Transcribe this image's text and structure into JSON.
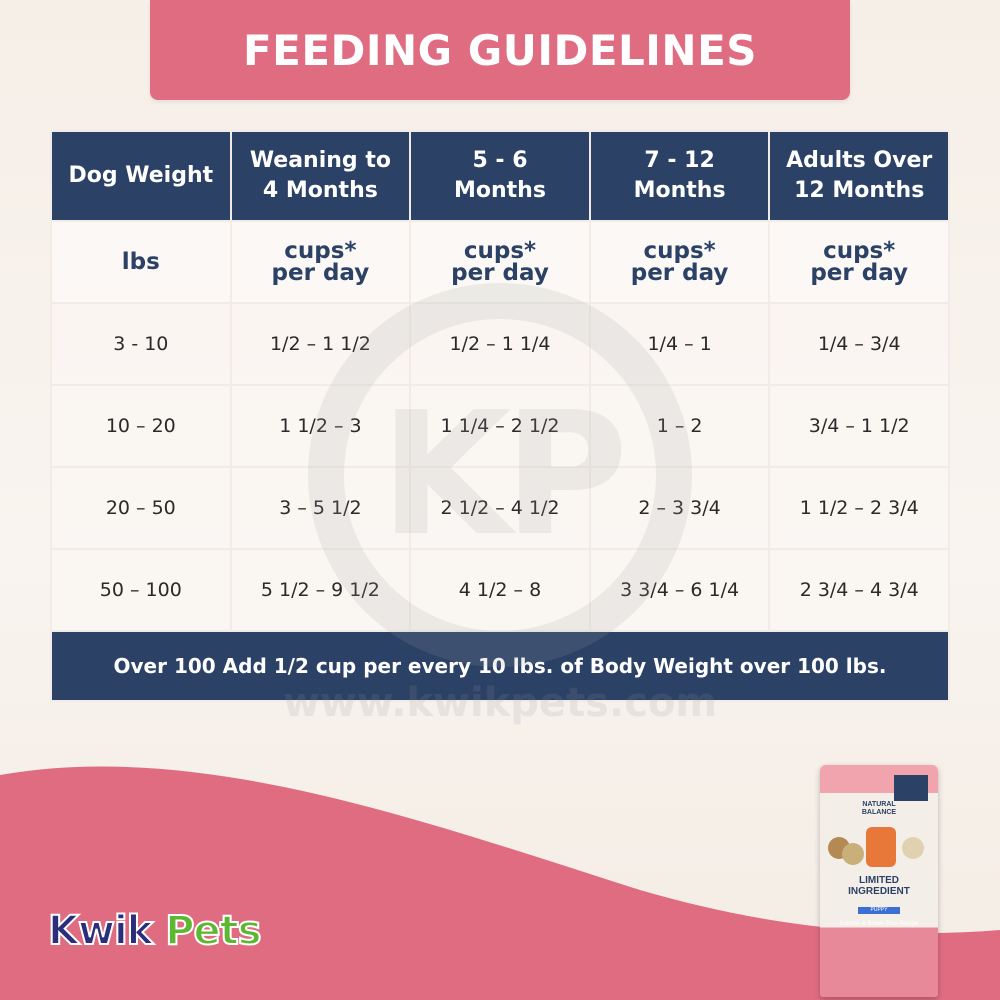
{
  "title": "FEEDING GUIDELINES",
  "colors": {
    "navy": "#2b4166",
    "pink": "#e06c82",
    "cream": "#f6efe8"
  },
  "table": {
    "headers": [
      [
        "Dog Weight"
      ],
      [
        "Weaning to",
        "4 Months"
      ],
      [
        "5 - 6",
        "Months"
      ],
      [
        "7 - 12",
        "Months"
      ],
      [
        "Adults Over",
        "12 Months"
      ]
    ],
    "units": [
      [
        "lbs"
      ],
      [
        "cups*",
        "per day"
      ],
      [
        "cups*",
        "per day"
      ],
      [
        "cups*",
        "per day"
      ],
      [
        "cups*",
        "per day"
      ]
    ],
    "rows": [
      [
        "3 - 10",
        "1/2 – 1 1/2",
        "1/2 – 1 1/4",
        "1/4 – 1",
        "1/4 – 3/4"
      ],
      [
        "10 – 20",
        "1 1/2 – 3",
        "1 1/4 – 2 1/2",
        "1 – 2",
        "3/4 – 1 1/2"
      ],
      [
        "20 – 50",
        "3 – 5 1/2",
        "2 1/2 – 4 1/2",
        "2 – 3 3/4",
        "1 1/2 – 2 3/4"
      ],
      [
        "50 – 100",
        "5 1/2 – 9 1/2",
        "4 1/2 – 8",
        "3 3/4 – 6 1/4",
        "2 3/4 – 4 3/4"
      ]
    ],
    "footer": "Over 100 Add 1/2 cup per every 10 lbs. of Body Weight over 100 lbs."
  },
  "watermark": {
    "letters": "KP",
    "url": "www.kwikpets.com"
  },
  "product": {
    "brand_line1": "NATURAL",
    "brand_line2": "BALANCE",
    "name_line1": "LIMITED",
    "name_line2": "INGREDIENT",
    "band": "PUPPY",
    "recipe": "Salmon & Brown Rice Recipe"
  },
  "logo": {
    "part1": "Kwik",
    "part2": "Pets"
  }
}
